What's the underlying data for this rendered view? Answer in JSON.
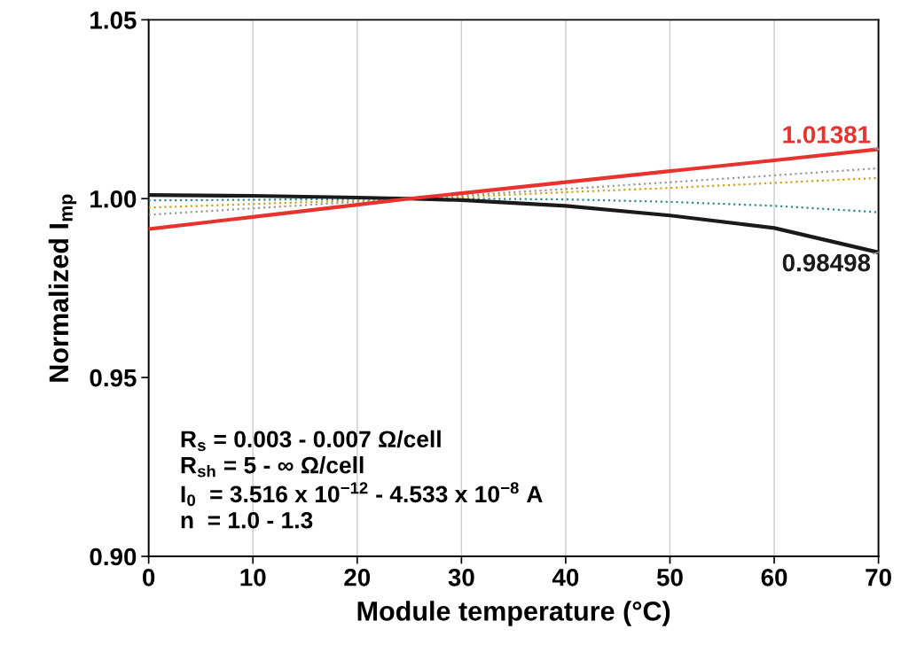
{
  "chart_data": {
    "type": "line",
    "xlabel": "Module temperature (°C)",
    "ylabel": "Normalized I$_{mp}$",
    "xlim": [
      0,
      70
    ],
    "xticks": [
      0,
      10,
      20,
      30,
      40,
      50,
      60,
      70
    ],
    "ylim": [
      0.9,
      1.05
    ],
    "yticks": [
      {
        "value": 0.9,
        "label": "0.90"
      },
      {
        "value": 0.95,
        "label": "0.95"
      },
      {
        "value": 1.0,
        "label": "1.00"
      },
      {
        "value": 1.05,
        "label": "1.05"
      }
    ],
    "grid": "x",
    "legend": false,
    "marker": "none",
    "x": [
      0,
      10,
      20,
      25,
      30,
      40,
      50,
      60,
      70
    ],
    "series": [
      {
        "color": "#1a1a1a",
        "line_style": "solid",
        "values": [
          1.001,
          1.0008,
          1.0003,
          1.0,
          0.9996,
          0.998,
          0.9953,
          0.9918,
          0.98498
        ]
      },
      {
        "color": "#2e8b8b",
        "line_style": "dotted",
        "values": [
          0.9995,
          0.9997,
          0.9999,
          1.0,
          1.0,
          0.9998,
          0.9991,
          0.998,
          0.9962
        ]
      },
      {
        "color": "#d4a017",
        "line_style": "dotted",
        "values": [
          0.9975,
          0.9985,
          0.9995,
          1.0,
          1.0005,
          1.0018,
          1.003,
          1.0044,
          1.0058
        ]
      },
      {
        "color": "#999999",
        "line_style": "dotted",
        "values": [
          0.9955,
          0.9973,
          0.9991,
          1.0,
          1.0009,
          1.0027,
          1.0046,
          1.0065,
          1.0085
        ]
      },
      {
        "color": "#e8322d",
        "line_style": "solid",
        "values": [
          0.9915,
          0.9949,
          0.9983,
          1.0,
          1.0015,
          1.0046,
          1.0077,
          1.0107,
          1.01381
        ]
      }
    ],
    "annotations": [
      {
        "text": "1.01381",
        "x": 70,
        "y": 1.01381
      },
      {
        "text": "0.98498",
        "x": 70,
        "y": 0.98498
      },
      "R$_{s}$ = 0.003 - 0.007 Ω/cell\nR$_{sh}$ = 5 - ∞ Ω/cell\nI$_{0}$  = 3.516 x 10$^{−12}$ - 4.533 x 10$^{−8}$ A\nn  = 1.0 - 1.3"
    ]
  }
}
